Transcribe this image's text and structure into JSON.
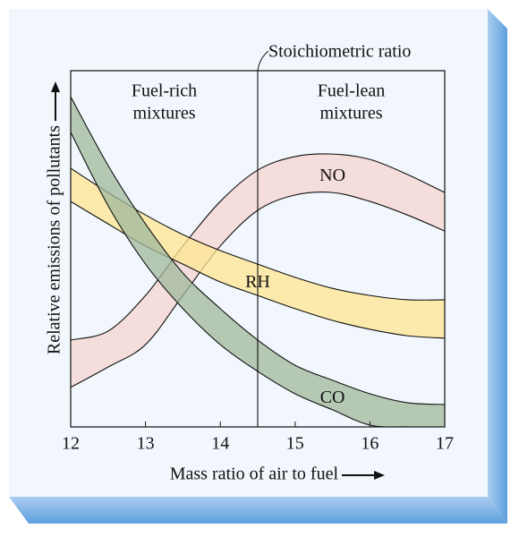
{
  "chart_data": {
    "type": "band",
    "x": [
      12,
      12.5,
      13,
      13.5,
      14,
      14.5,
      15,
      15.5,
      16,
      16.5,
      17
    ],
    "series": [
      {
        "name": "NO",
        "color": "#f4d4cf",
        "upper": [
          24.4,
          26.9,
          36.9,
          50.8,
          63.3,
          72.1,
          75.9,
          76.6,
          75.1,
          70.9,
          65.8
        ],
        "lower": [
          11.1,
          16.8,
          23.1,
          36.9,
          50.8,
          60.8,
          65.1,
          65.8,
          63.3,
          59.5,
          55.0
        ]
      },
      {
        "name": "RH",
        "color": "#fde592",
        "upper": [
          72.6,
          65.8,
          59.5,
          54.0,
          49.5,
          45.7,
          42.0,
          38.9,
          36.9,
          35.7,
          35.7
        ],
        "lower": [
          63.3,
          57.0,
          50.8,
          45.7,
          40.7,
          36.9,
          33.2,
          29.9,
          27.4,
          25.6,
          24.9
        ]
      },
      {
        "name": "CO",
        "color": "#9fb89c",
        "upper": [
          92.7,
          73.4,
          57.0,
          43.2,
          33.2,
          24.4,
          17.3,
          13.1,
          9.3,
          6.8,
          6.3
        ],
        "lower": [
          82.7,
          62.1,
          45.7,
          33.2,
          23.1,
          15.6,
          9.3,
          4.8,
          0.5,
          0,
          0
        ]
      }
    ],
    "xlim": [
      12,
      17
    ],
    "xticks": [
      12,
      13,
      14,
      15,
      16,
      17
    ],
    "ylim": [
      0,
      100
    ],
    "x_label": "Mass ratio of air to fuel",
    "y_label": "Relative emissions of pollutants",
    "marker_x": 14.5,
    "marker_label": "Stoichiometric ratio",
    "regions": [
      {
        "lines": [
          "Fuel-rich",
          "mixtures"
        ]
      },
      {
        "lines": [
          "Fuel-lean",
          "mixtures"
        ]
      }
    ]
  }
}
